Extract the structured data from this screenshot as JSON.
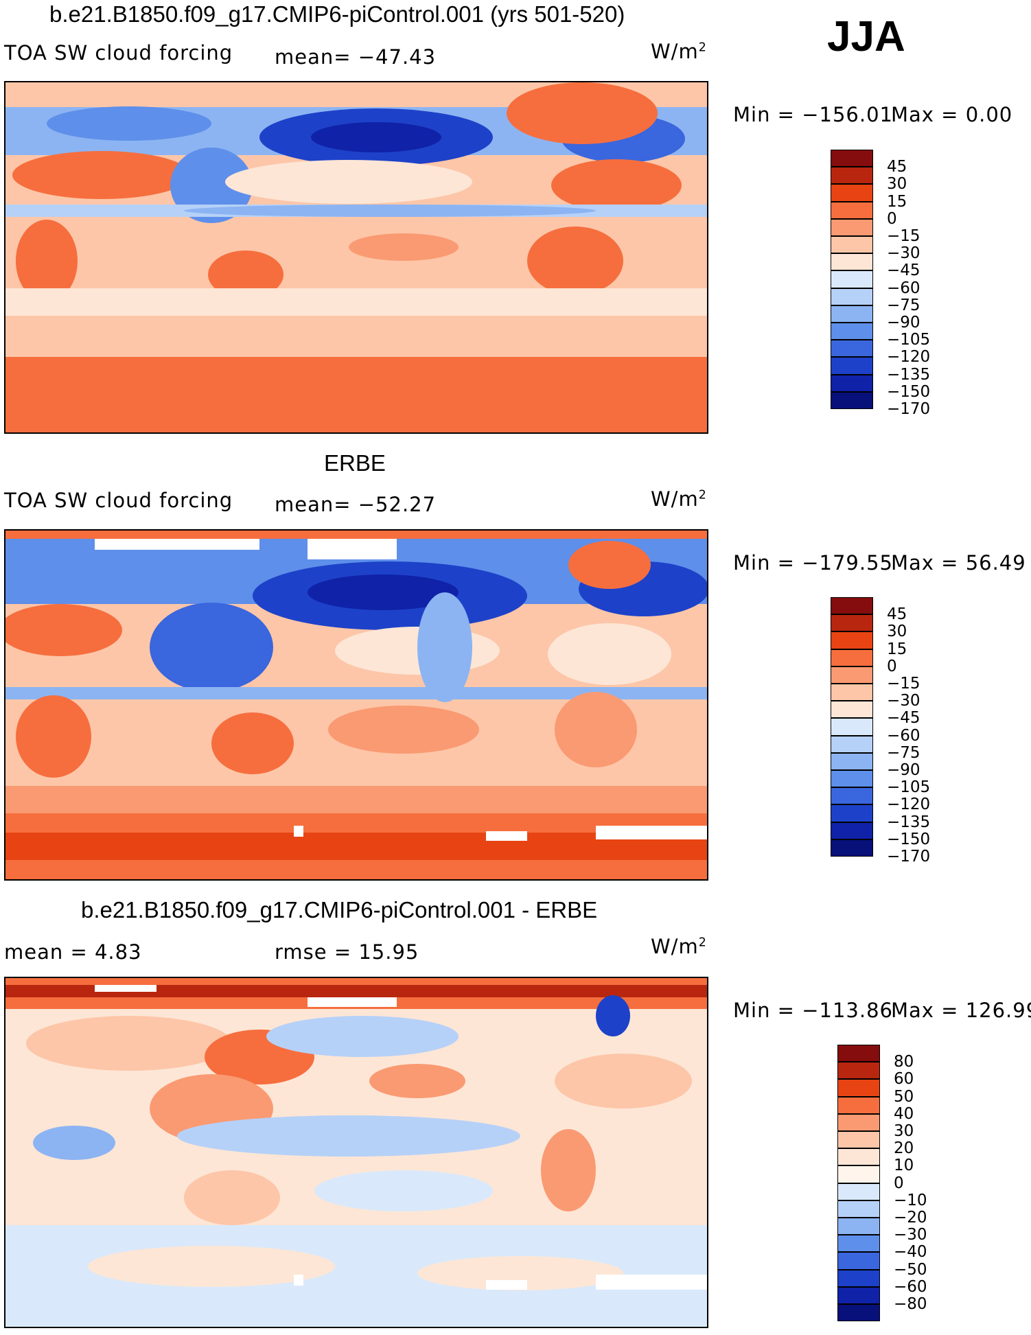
{
  "season": "JJA",
  "units": "W/m",
  "units_sup": "2",
  "panels": [
    {
      "title": "b.e21.B1850.f09_g17.CMIP6-piControl.001 (yrs 501-520)",
      "left_label": "TOA SW cloud forcing",
      "center_label": "mean= −47.43",
      "min_label": "Min = −156.01",
      "max_label": "Max =   0.00",
      "legend_ticks": [
        "45",
        "30",
        "15",
        "0",
        "−15",
        "−30",
        "−45",
        "−60",
        "−75",
        "−90",
        "−105",
        "−120",
        "−135",
        "−150",
        "−170"
      ]
    },
    {
      "title": "ERBE",
      "left_label": "TOA SW cloud forcing",
      "center_label": "mean= −52.27",
      "min_label": "Min = −179.55",
      "max_label": "Max =  56.49",
      "legend_ticks": [
        "45",
        "30",
        "15",
        "0",
        "−15",
        "−30",
        "−45",
        "−60",
        "−75",
        "−90",
        "−105",
        "−120",
        "−135",
        "−150",
        "−170"
      ]
    },
    {
      "title": "b.e21.B1850.f09_g17.CMIP6-piControl.001 - ERBE",
      "left_label": "mean =    4.83",
      "center_label": "rmse =   15.95",
      "min_label": "Min = −113.86",
      "max_label": "Max = 126.99",
      "legend_ticks": [
        "80",
        "60",
        "50",
        "40",
        "30",
        "20",
        "10",
        "0",
        "−10",
        "−20",
        "−30",
        "−40",
        "−50",
        "−60",
        "−80"
      ]
    }
  ],
  "colors": {
    "abs_scale": [
      "#850d0d",
      "#b8260f",
      "#e84413",
      "#f66e3e",
      "#fa9a72",
      "#fdc6a8",
      "#fde6d6",
      "#d9e9fb",
      "#b6d1f8",
      "#8cb4f2",
      "#5e8fea",
      "#3a66de",
      "#1d42c9",
      "#0f22a8",
      "#08107a"
    ],
    "diff_scale": [
      "#850d0d",
      "#b8260f",
      "#e84413",
      "#f66e3e",
      "#fa9a72",
      "#fdc6a8",
      "#fde6d6",
      "#fff5ec",
      "#d9e9fb",
      "#b6d1f8",
      "#8cb4f2",
      "#5e8fea",
      "#3a66de",
      "#1d42c9",
      "#0f22a8",
      "#08107a"
    ]
  }
}
